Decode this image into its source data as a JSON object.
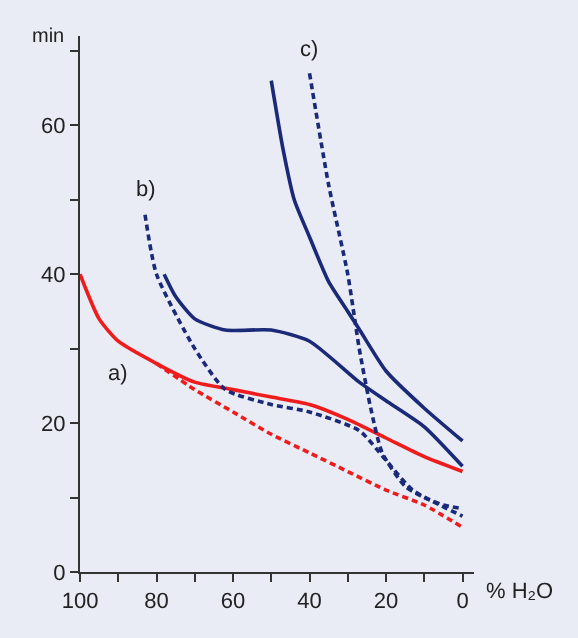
{
  "chart_data": {
    "type": "line",
    "xlabel": "% H₂O",
    "ylabel": "min",
    "xlim": [
      100,
      -3
    ],
    "ylim": [
      0,
      72
    ],
    "xticks": [
      100,
      {
        "value": 90,
        "label": null
      },
      80,
      {
        "value": 70,
        "label": null
      },
      60,
      {
        "value": 50,
        "label": null
      },
      40,
      {
        "value": 30,
        "label": null
      },
      20,
      {
        "value": 10,
        "label": null
      },
      0
    ],
    "yticks": [
      0,
      {
        "value": 10,
        "label": null
      },
      20,
      {
        "value": 30,
        "label": null
      },
      40,
      {
        "value": 50,
        "label": null
      },
      60,
      {
        "value": 70,
        "label": null
      }
    ],
    "grid": false,
    "marker": "none",
    "series": [
      {
        "color": "#ee1c1c",
        "line_style": "solid",
        "x": [
          100,
          95,
          90,
          80,
          70,
          60,
          50,
          40,
          30,
          20,
          10,
          0
        ],
        "values": [
          40,
          34,
          31,
          28,
          25.5,
          24.5,
          23.5,
          22.5,
          20.5,
          18,
          15.5,
          13.5
        ]
      },
      {
        "color": "#ee1c1c",
        "line_style": "dashed",
        "x": [
          80,
          70,
          60,
          50,
          40,
          30,
          20,
          10,
          0
        ],
        "values": [
          28,
          24.5,
          21.5,
          18.5,
          16,
          13.5,
          11,
          9,
          6
        ]
      },
      {
        "color": "#1a2a78",
        "line_style": "solid",
        "x": [
          78,
          75,
          70,
          62,
          50,
          40,
          27,
          20,
          10,
          0
        ],
        "values": [
          40,
          37,
          34,
          32.5,
          32.5,
          31,
          25.5,
          23,
          19.5,
          14.2
        ]
      },
      {
        "color": "#1a2a78",
        "line_style": "dashed",
        "x": [
          83,
          80,
          70,
          62,
          50,
          40,
          27,
          20,
          13,
          0
        ],
        "values": [
          48,
          40,
          30,
          24.5,
          22.5,
          21.5,
          19,
          15,
          11,
          7.5
        ]
      },
      {
        "color": "#1a2a78",
        "line_style": "solid",
        "x": [
          50,
          47,
          44,
          40,
          35,
          30,
          27,
          20,
          10,
          0
        ],
        "values": [
          66,
          57,
          50,
          45,
          39,
          35,
          32.6,
          27,
          22,
          17.6
        ]
      },
      {
        "color": "#1a2a78",
        "line_style": "dashed",
        "x": [
          40,
          35,
          30,
          27,
          24,
          21,
          15,
          10,
          5,
          0
        ],
        "values": [
          67,
          52,
          40,
          30,
          22,
          16,
          11.5,
          10,
          9,
          8.5
        ]
      }
    ],
    "annotations": [
      "a)",
      "b)",
      "c)"
    ]
  }
}
